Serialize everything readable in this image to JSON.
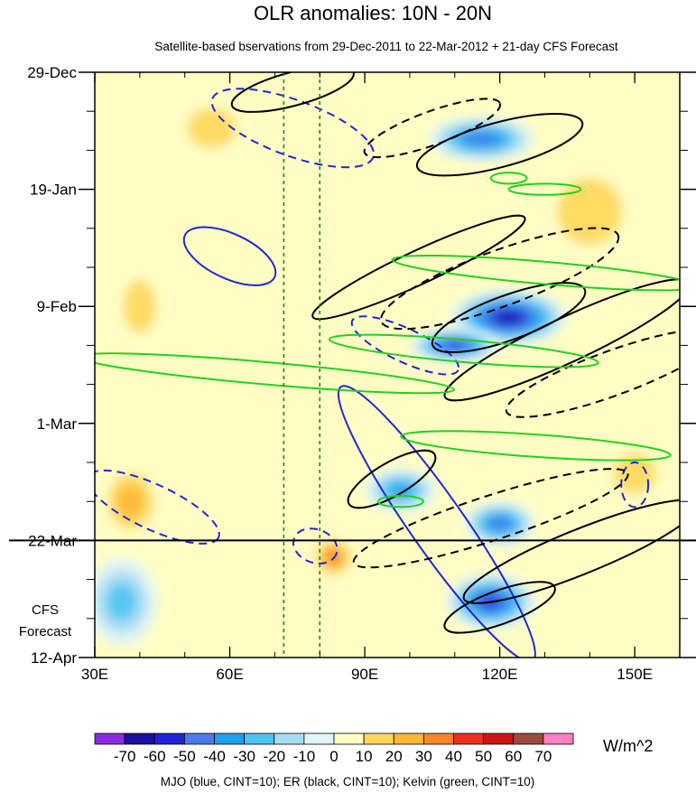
{
  "chart_data": {
    "type": "heatmap",
    "title": "OLR anomalies: 10N - 20N",
    "subtitle": "Satellite-based bservations from 29-Dec-2011 to 22-Mar-2012 + 21-day CFS Forecast",
    "x_axis": {
      "range": [
        30,
        160
      ],
      "ticks": [
        30,
        60,
        90,
        120,
        150
      ],
      "tick_labels": [
        "30E",
        "60E",
        "90E",
        "120E",
        "150E"
      ]
    },
    "y_axis": {
      "range_days": [
        0,
        105
      ],
      "ticks_days": [
        0,
        21,
        42,
        63,
        84,
        105
      ],
      "tick_labels": [
        "29-Dec",
        "19-Jan",
        "9-Feb",
        "1-Mar",
        "22-Mar",
        "12-Apr"
      ],
      "minor_step_days": 7
    },
    "forecast_start_day": 84,
    "forecast_label": [
      "CFS",
      "Forecast"
    ],
    "reference_lines_lon": [
      72,
      80
    ],
    "colorbar": {
      "label": "W/m^2",
      "levels": [
        -70,
        -60,
        -50,
        -40,
        -30,
        -20,
        -10,
        0,
        10,
        20,
        30,
        40,
        50,
        60,
        70
      ],
      "level_labels": [
        "-70",
        "-60",
        "-50",
        "-40",
        "-30",
        "-20",
        "-10",
        "0",
        "10",
        "20",
        "30",
        "40",
        "50",
        "60",
        "70"
      ],
      "colors": [
        "#8a2be2",
        "#1a0fa0",
        "#2222d8",
        "#4a7bea",
        "#1ea0f0",
        "#4cc4f2",
        "#a8dcf6",
        "#e0f6f6",
        "#fffdc4",
        "#fed75a",
        "#fdb634",
        "#fa8628",
        "#ee2e1e",
        "#cc1614",
        "#a04a3e",
        "#ff7fc4"
      ]
    },
    "olr_anomaly_blobs": [
      {
        "lon": 116,
        "day": 12,
        "rlon": 12,
        "rday": 4,
        "value": -45
      },
      {
        "lon": 122,
        "day": 44,
        "rlon": 13,
        "rday": 5,
        "value": -65
      },
      {
        "lon": 110,
        "day": 49,
        "rlon": 10,
        "rday": 3,
        "value": -55
      },
      {
        "lon": 98,
        "day": 75,
        "rlon": 8,
        "rday": 4,
        "value": -40
      },
      {
        "lon": 118,
        "day": 95,
        "rlon": 10,
        "rday": 5,
        "value": -60
      },
      {
        "lon": 120,
        "day": 81,
        "rlon": 8,
        "rday": 4,
        "value": -45
      },
      {
        "lon": 38,
        "day": 77,
        "rlon": 7,
        "rday": 7,
        "value": 30
      },
      {
        "lon": 83,
        "day": 87,
        "rlon": 5,
        "rday": 4,
        "value": 35
      },
      {
        "lon": 40,
        "day": 42,
        "rlon": 6,
        "rday": 8,
        "value": 20
      },
      {
        "lon": 56,
        "day": 10,
        "rlon": 9,
        "rday": 6,
        "value": 20
      },
      {
        "lon": 140,
        "day": 25,
        "rlon": 12,
        "rday": 10,
        "value": 20
      },
      {
        "lon": 150,
        "day": 72,
        "rlon": 8,
        "rday": 6,
        "value": 20
      },
      {
        "lon": 36,
        "day": 95,
        "rlon": 8,
        "rday": 8,
        "value": -25
      }
    ],
    "series": [
      {
        "name": "MJO",
        "color": "blue",
        "cint": 10,
        "contours": [
          {
            "lon": 74,
            "day": 10,
            "rlon": 19,
            "rday": 5,
            "angle": 20,
            "dashed": true
          },
          {
            "lon": 60,
            "day": 33,
            "rlon": 11,
            "rday": 4,
            "angle": 25,
            "dashed": false
          },
          {
            "lon": 99,
            "day": 49,
            "rlon": 13,
            "rday": 3,
            "angle": 25,
            "dashed": true
          },
          {
            "lon": 106,
            "day": 81,
            "rlon": 6,
            "rday": 30,
            "angle": -35,
            "dashed": false
          },
          {
            "lon": 43,
            "day": 78,
            "rlon": 16,
            "rday": 4,
            "angle": 25,
            "dashed": true
          },
          {
            "lon": 79,
            "day": 85,
            "rlon": 5,
            "rday": 3,
            "angle": 20,
            "dashed": true
          },
          {
            "lon": 150,
            "day": 74,
            "rlon": 3,
            "rday": 4,
            "angle": 0,
            "dashed": true
          }
        ]
      },
      {
        "name": "ER",
        "color": "black",
        "cint": 10,
        "contours": [
          {
            "lon": 74,
            "day": 3,
            "rlon": 14,
            "rday": 3,
            "angle": -15,
            "dashed": false
          },
          {
            "lon": 120,
            "day": 13,
            "rlon": 19,
            "rday": 4,
            "angle": -15,
            "dashed": false
          },
          {
            "lon": 105,
            "day": 10,
            "rlon": 16,
            "rday": 3,
            "angle": -20,
            "dashed": true
          },
          {
            "lon": 102,
            "day": 35,
            "rlon": 26,
            "rday": 3,
            "angle": -25,
            "dashed": false
          },
          {
            "lon": 120,
            "day": 37,
            "rlon": 28,
            "rday": 5,
            "angle": -20,
            "dashed": true
          },
          {
            "lon": 135,
            "day": 48,
            "rlon": 30,
            "rday": 4,
            "angle": -25,
            "dashed": false
          },
          {
            "lon": 122,
            "day": 44,
            "rlon": 18,
            "rday": 4,
            "angle": -20,
            "dashed": false
          },
          {
            "lon": 145,
            "day": 54,
            "rlon": 25,
            "rday": 4,
            "angle": -20,
            "dashed": true
          },
          {
            "lon": 96,
            "day": 73,
            "rlon": 11,
            "rday": 3,
            "angle": -30,
            "dashed": false
          },
          {
            "lon": 118,
            "day": 80,
            "rlon": 32,
            "rday": 4,
            "angle": -18,
            "dashed": true
          },
          {
            "lon": 138,
            "day": 86,
            "rlon": 28,
            "rday": 4,
            "angle": -22,
            "dashed": false
          },
          {
            "lon": 120,
            "day": 96,
            "rlon": 13,
            "rday": 3,
            "angle": -20,
            "dashed": false
          }
        ]
      },
      {
        "name": "Kelvin",
        "color": "green",
        "cint": 10,
        "contours": [
          {
            "lon": 68,
            "day": 54,
            "rlon": 42,
            "rday": 2,
            "angle": 5,
            "dashed": false
          },
          {
            "lon": 112,
            "day": 50,
            "rlon": 30,
            "rday": 2,
            "angle": 5,
            "dashed": false
          },
          {
            "lon": 130,
            "day": 36,
            "rlon": 34,
            "rday": 2,
            "angle": 5,
            "dashed": false
          },
          {
            "lon": 128,
            "day": 67,
            "rlon": 30,
            "rday": 2,
            "angle": 4,
            "dashed": false
          },
          {
            "lon": 130,
            "day": 21,
            "rlon": 8,
            "rday": 1,
            "angle": 0,
            "dashed": false
          },
          {
            "lon": 122,
            "day": 19,
            "rlon": 4,
            "rday": 1,
            "angle": 0,
            "dashed": false
          },
          {
            "lon": 98,
            "day": 77,
            "rlon": 5,
            "rday": 1,
            "angle": 0,
            "dashed": false
          }
        ]
      }
    ]
  },
  "footer_note": "MJO (blue, CINT=10); ER (black, CINT=10); Kelvin (green, CINT=10)"
}
